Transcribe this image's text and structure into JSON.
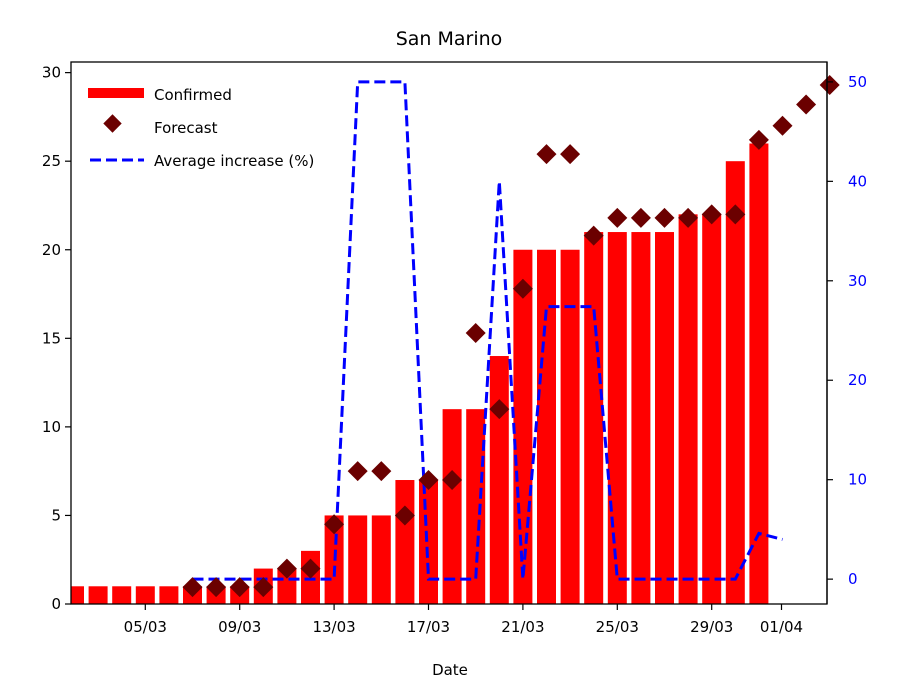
{
  "chart_data": {
    "type": "bar",
    "title": "San Marino",
    "xlabel": "Date",
    "ylabel": "",
    "ylabel_right": "",
    "ylim": [
      0,
      30.6
    ],
    "ylim_right": [
      -2.5,
      52
    ],
    "yticks": [
      0,
      5,
      10,
      15,
      20,
      25,
      30
    ],
    "yticks_right": [
      0,
      10,
      20,
      30,
      40,
      50
    ],
    "x_dates": [
      "02/03",
      "03/03",
      "04/03",
      "05/03",
      "06/03",
      "07/03",
      "08/03",
      "09/03",
      "10/03",
      "11/03",
      "12/03",
      "13/03",
      "14/03",
      "15/03",
      "16/03",
      "17/03",
      "18/03",
      "19/03",
      "20/03",
      "21/03",
      "22/03",
      "23/03",
      "24/03",
      "25/03",
      "26/03",
      "27/03",
      "28/03",
      "29/03",
      "30/03",
      "31/03",
      "01/04",
      "02/04",
      "03/04"
    ],
    "xticks": [
      "05/03",
      "09/03",
      "13/03",
      "17/03",
      "21/03",
      "25/03",
      "29/03",
      "01/04"
    ],
    "legend_position": "top-left",
    "colors": {
      "bars": "#ff0000",
      "forecast": "#6b0000",
      "increase": "#0000ff"
    },
    "series": [
      {
        "name": "Confirmed",
        "type": "bar",
        "axis": "left",
        "x": [
          "02/03",
          "03/03",
          "04/03",
          "05/03",
          "06/03",
          "07/03",
          "08/03",
          "09/03",
          "10/03",
          "11/03",
          "12/03",
          "13/03",
          "14/03",
          "15/03",
          "16/03",
          "17/03",
          "18/03",
          "19/03",
          "20/03",
          "21/03",
          "22/03",
          "23/03",
          "24/03",
          "25/03",
          "26/03",
          "27/03",
          "28/03",
          "29/03",
          "30/03",
          "31/03"
        ],
        "values": [
          1,
          1,
          1,
          1,
          1,
          1,
          1,
          1,
          2,
          2,
          3,
          5,
          5,
          5,
          7,
          7,
          11,
          11,
          14,
          20,
          20,
          20,
          21,
          21,
          21,
          21,
          22,
          22,
          25,
          26
        ]
      },
      {
        "name": "Forecast",
        "type": "scatter",
        "axis": "left",
        "x": [
          "07/03",
          "08/03",
          "09/03",
          "10/03",
          "11/03",
          "12/03",
          "13/03",
          "14/03",
          "15/03",
          "16/03",
          "17/03",
          "18/03",
          "19/03",
          "20/03",
          "21/03",
          "22/03",
          "23/03",
          "24/03",
          "25/03",
          "26/03",
          "27/03",
          "28/03",
          "29/03",
          "30/03",
          "31/03",
          "01/04",
          "02/04",
          "03/04"
        ],
        "values": [
          0.95,
          0.95,
          0.95,
          0.95,
          2,
          2,
          4.5,
          7.5,
          7.5,
          5,
          7,
          7,
          15.3,
          11,
          17.8,
          25.4,
          25.4,
          20.8,
          21.8,
          21.8,
          21.8,
          21.8,
          22,
          22,
          26.2,
          27,
          28.2,
          29.3
        ]
      },
      {
        "name": "Average increase (%)",
        "type": "line",
        "axis": "right",
        "style": "dashed",
        "x": [
          5,
          10,
          11,
          12,
          14,
          15,
          17,
          18,
          19,
          20,
          22,
          23,
          28,
          29,
          30
        ],
        "values": [
          0,
          0,
          0,
          50,
          50,
          0,
          0,
          40,
          0,
          27.4,
          27.4,
          0,
          0,
          4.6,
          4.0
        ],
        "x_note_omitted": ""
      }
    ]
  }
}
